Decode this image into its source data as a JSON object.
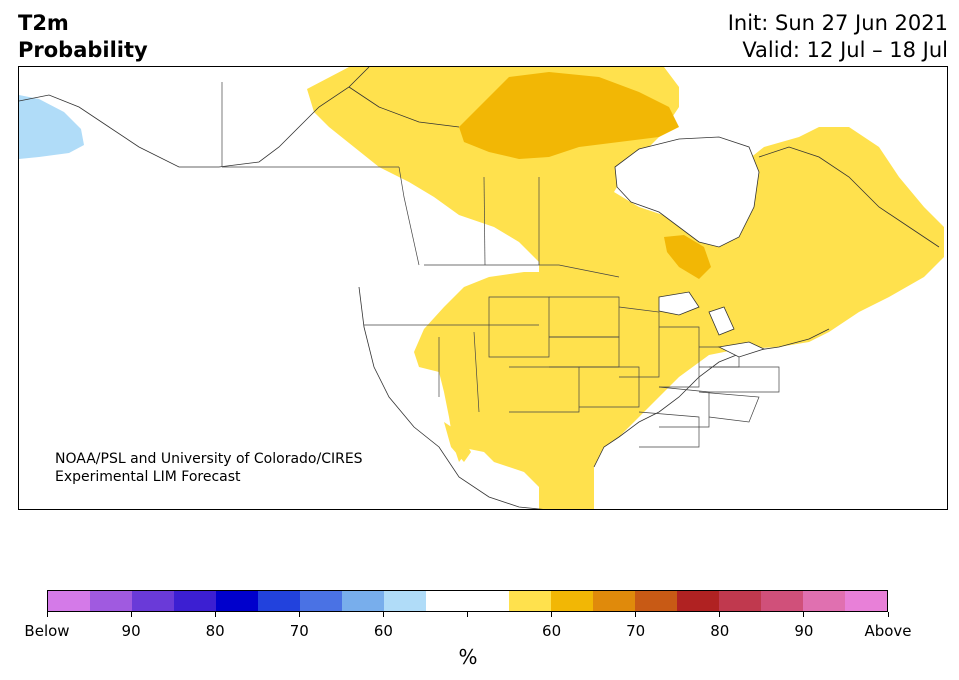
{
  "header": {
    "title_line1": "T2m",
    "title_line2": "Probability",
    "init": "Init: Sun 27 Jun 2021",
    "valid": "Valid: 12 Jul – 18 Jul"
  },
  "credit": {
    "line1": "NOAA/PSL and University of Colorado/CIRES",
    "line2": "Experimental LIM Forecast"
  },
  "legend": {
    "unit": "%",
    "colors": [
      "#d47ae8",
      "#a05ae0",
      "#6a3ad8",
      "#3c1fd2",
      "#0000cc",
      "#2242dd",
      "#4a72e4",
      "#78aeec",
      "#b0dcf8",
      "#ffffff",
      "#ffffff",
      "#ffe14d",
      "#f2b705",
      "#e08a0b",
      "#c85a15",
      "#b02222",
      "#c0394e",
      "#d0507a",
      "#e070b0",
      "#e880d8"
    ],
    "tick_labels": [
      "Below",
      "90",
      "80",
      "70",
      "60",
      "",
      "60",
      "70",
      "80",
      "90",
      "Above"
    ]
  },
  "map": {
    "region": "North America",
    "fill_colors": {
      "prob_60": "#ffe14d",
      "prob_70": "#f2b705",
      "below_60": "#b0dcf8"
    }
  }
}
